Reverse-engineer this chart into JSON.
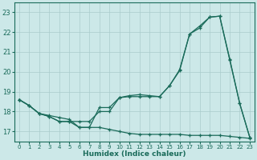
{
  "xlabel": "Humidex (Indice chaleur)",
  "background_color": "#cce8e8",
  "grid_color": "#aacccc",
  "line_color": "#1a6b5a",
  "xlim": [
    -0.5,
    23.5
  ],
  "ylim": [
    16.5,
    23.5
  ],
  "yticks": [
    17,
    18,
    19,
    20,
    21,
    22,
    23
  ],
  "xticks": [
    0,
    1,
    2,
    3,
    4,
    5,
    6,
    7,
    8,
    9,
    10,
    11,
    12,
    13,
    14,
    15,
    16,
    17,
    18,
    19,
    20,
    21,
    22,
    23
  ],
  "line1_x": [
    0,
    1,
    2,
    3,
    4,
    5,
    6,
    7,
    8,
    9,
    10,
    11,
    12,
    13,
    14,
    15,
    16,
    17,
    18,
    19,
    20,
    21,
    22,
    23
  ],
  "line1_y": [
    18.6,
    18.3,
    17.9,
    17.8,
    17.7,
    17.6,
    17.2,
    17.2,
    18.2,
    18.2,
    18.7,
    18.8,
    18.85,
    18.8,
    18.75,
    19.3,
    20.1,
    21.9,
    22.2,
    22.75,
    22.8,
    20.6,
    18.4,
    16.7
  ],
  "line2_x": [
    0,
    1,
    2,
    3,
    4,
    5,
    6,
    7,
    8,
    9,
    10,
    11,
    12,
    13,
    14,
    15,
    16,
    17,
    18,
    19,
    20,
    21,
    22,
    23
  ],
  "line2_y": [
    18.6,
    18.3,
    17.9,
    17.75,
    17.5,
    17.5,
    17.5,
    17.5,
    18.0,
    18.0,
    18.7,
    18.75,
    18.75,
    18.75,
    18.75,
    19.3,
    20.05,
    21.9,
    22.3,
    22.75,
    22.8,
    20.65,
    18.4,
    16.7
  ],
  "line3_x": [
    0,
    1,
    2,
    3,
    4,
    5,
    6,
    7,
    8,
    9,
    10,
    11,
    12,
    13,
    14,
    15,
    16,
    17,
    18,
    19,
    20,
    21,
    22,
    23
  ],
  "line3_y": [
    18.6,
    18.3,
    17.9,
    17.75,
    17.5,
    17.5,
    17.2,
    17.2,
    17.2,
    17.1,
    17.0,
    16.9,
    16.85,
    16.85,
    16.85,
    16.85,
    16.85,
    16.8,
    16.8,
    16.8,
    16.8,
    16.75,
    16.7,
    16.65
  ]
}
